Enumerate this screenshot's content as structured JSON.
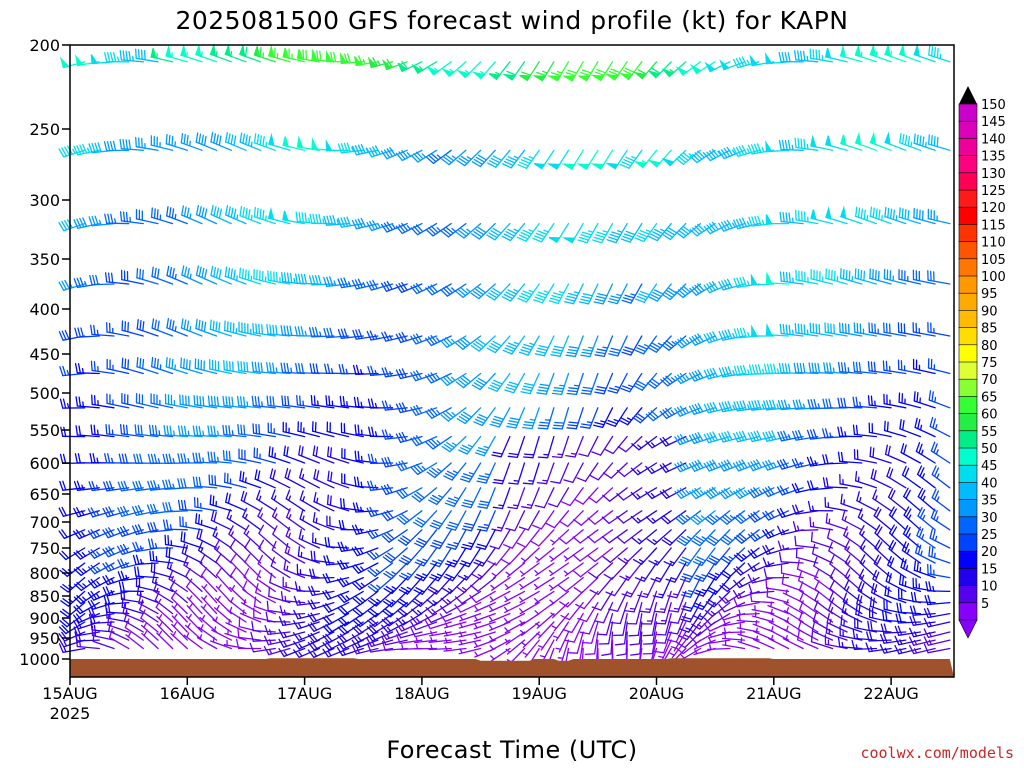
{
  "chart_data": {
    "type": "wind-barb-profile",
    "title": "2025081500 GFS forecast wind profile (kt) for KAPN",
    "xlabel": "Forecast Time (UTC)",
    "credit": "coolwx.com/models",
    "x_ticks": [
      {
        "label": "15AUG",
        "sublabel": "2025",
        "hours": 0
      },
      {
        "label": "16AUG",
        "hours": 24
      },
      {
        "label": "17AUG",
        "hours": 48
      },
      {
        "label": "18AUG",
        "hours": 72
      },
      {
        "label": "19AUG",
        "hours": 96
      },
      {
        "label": "20AUG",
        "hours": 120
      },
      {
        "label": "21AUG",
        "hours": 144
      },
      {
        "label": "22AUG",
        "hours": 168
      }
    ],
    "xlim_hours": [
      0,
      180
    ],
    "forecast_step_hours": 3,
    "pressure_levels": [
      200,
      250,
      300,
      350,
      400,
      450,
      500,
      550,
      600,
      650,
      700,
      750,
      800,
      850,
      900,
      950,
      1000
    ],
    "ylim": [
      200,
      1020
    ],
    "barb_levels": [
      210,
      265,
      320,
      375,
      430,
      475,
      520,
      560,
      600,
      640,
      680,
      715,
      750,
      780,
      810,
      840,
      865,
      890,
      910,
      935,
      955,
      975
    ],
    "surface_pressure": [
      {
        "hours": 0,
        "p": 1000
      },
      {
        "hours": 40,
        "p": 1000
      },
      {
        "hours": 41,
        "p": 998
      },
      {
        "hours": 58,
        "p": 998
      },
      {
        "hours": 59,
        "p": 1000
      },
      {
        "hours": 83,
        "p": 1000
      },
      {
        "hours": 84,
        "p": 1002
      },
      {
        "hours": 94,
        "p": 1002
      },
      {
        "hours": 95,
        "p": 1000
      },
      {
        "hours": 99,
        "p": 1000
      },
      {
        "hours": 100,
        "p": 1002
      },
      {
        "hours": 102,
        "p": 1002
      },
      {
        "hours": 103,
        "p": 1000
      },
      {
        "hours": 122,
        "p": 1000
      },
      {
        "hours": 123,
        "p": 998
      },
      {
        "hours": 143,
        "p": 998
      },
      {
        "hours": 144,
        "p": 1000
      },
      {
        "hours": 180,
        "p": 1000
      }
    ],
    "ground_color": "#a0522d",
    "colorbar": {
      "labels": [
        150,
        145,
        140,
        135,
        130,
        125,
        120,
        115,
        110,
        105,
        100,
        95,
        90,
        85,
        80,
        75,
        70,
        65,
        60,
        55,
        50,
        45,
        40,
        35,
        30,
        25,
        20,
        15,
        10,
        5
      ],
      "colors": [
        "#cc00cc",
        "#dd00bb",
        "#ee0099",
        "#ff0080",
        "#ff0055",
        "#ff1a1a",
        "#ff0000",
        "#ff3300",
        "#ff5500",
        "#ff7700",
        "#ff9900",
        "#ffaa00",
        "#ffbb00",
        "#ffdd00",
        "#ffff00",
        "#ddff33",
        "#88ff33",
        "#33ff33",
        "#22ee44",
        "#00ee88",
        "#00ffcc",
        "#00ddee",
        "#00bbff",
        "#0099ff",
        "#0066ff",
        "#0044ff",
        "#0000ff",
        "#2200ee",
        "#5500ee",
        "#8800ff"
      ]
    }
  }
}
